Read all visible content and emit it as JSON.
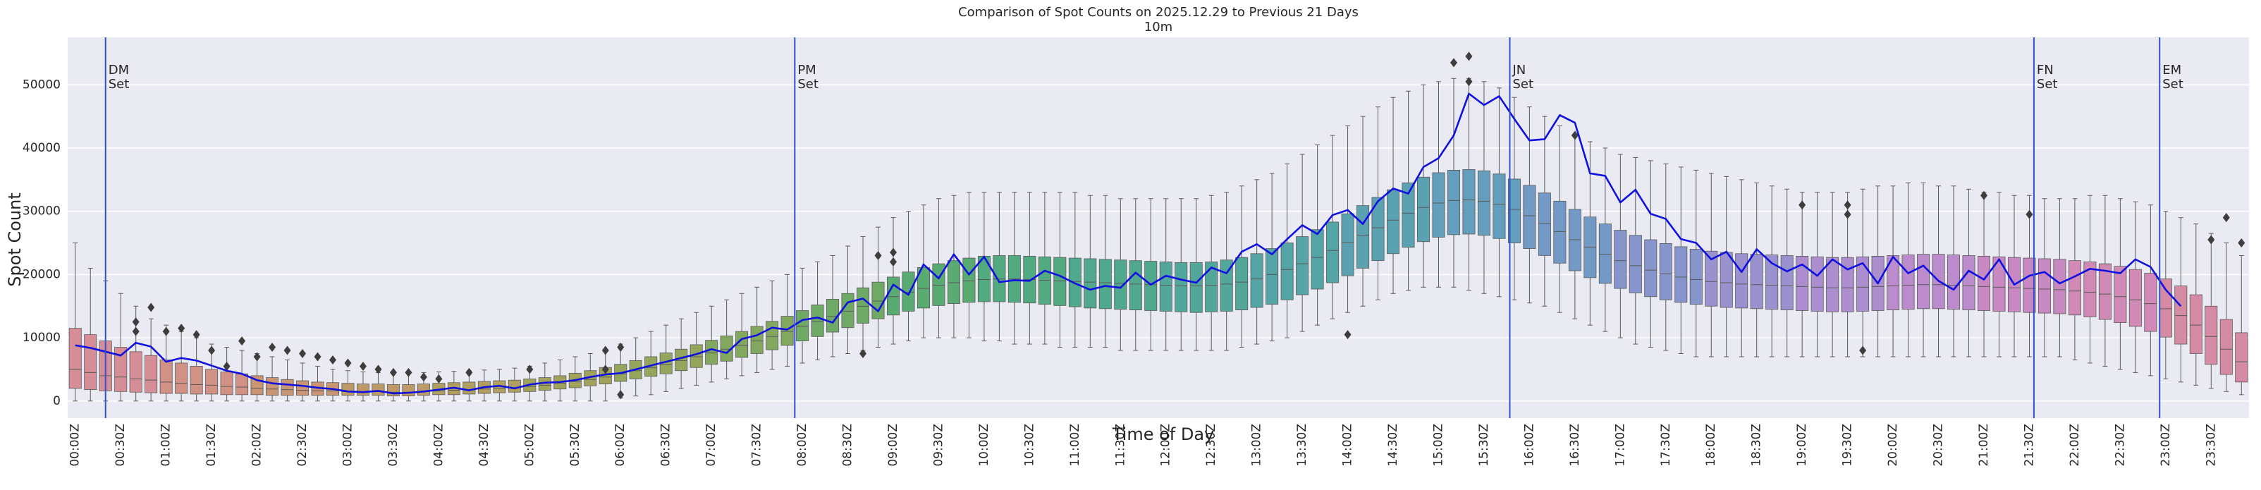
{
  "chart_data": {
    "type": "box",
    "title": "Comparison of Spot Counts on 2025.12.29 to Previous 21 Days",
    "subtitle": "10m",
    "x_label": "Time of Day",
    "y_label": "Spot Count",
    "ylim": [
      -2700,
      57500
    ],
    "yticks": [
      0,
      10000,
      20000,
      30000,
      40000,
      50000
    ],
    "grid": true,
    "categories": [
      "00:00Z",
      null,
      null,
      "00:30Z",
      null,
      null,
      "01:00Z",
      null,
      null,
      "01:30Z",
      null,
      null,
      "02:00Z",
      null,
      null,
      "02:30Z",
      null,
      null,
      "03:00Z",
      null,
      null,
      "03:30Z",
      null,
      null,
      "04:00Z",
      null,
      null,
      "04:30Z",
      null,
      null,
      "05:00Z",
      null,
      null,
      "05:30Z",
      null,
      null,
      "06:00Z",
      null,
      null,
      "06:30Z",
      null,
      null,
      "07:00Z",
      null,
      null,
      "07:30Z",
      null,
      null,
      "08:00Z",
      null,
      null,
      "08:30Z",
      null,
      null,
      "09:00Z",
      null,
      null,
      "09:30Z",
      null,
      null,
      "10:00Z",
      null,
      null,
      "10:30Z",
      null,
      null,
      "11:00Z",
      null,
      null,
      "11:30Z",
      null,
      null,
      "12:00Z",
      null,
      null,
      "12:30Z",
      null,
      null,
      "13:00Z",
      null,
      null,
      "13:30Z",
      null,
      null,
      "14:00Z",
      null,
      null,
      "14:30Z",
      null,
      null,
      "15:00Z",
      null,
      null,
      "15:30Z",
      null,
      null,
      "16:00Z",
      null,
      null,
      "16:30Z",
      null,
      null,
      "17:00Z",
      null,
      null,
      "17:30Z",
      null,
      null,
      "18:00Z",
      null,
      null,
      "18:30Z",
      null,
      null,
      "19:00Z",
      null,
      null,
      "19:30Z",
      null,
      null,
      "20:00Z",
      null,
      null,
      "20:30Z",
      null,
      null,
      "21:00Z",
      null,
      null,
      "21:30Z",
      null,
      null,
      "22:00Z",
      null,
      null,
      "22:30Z",
      null,
      null,
      "23:00Z",
      null,
      null,
      "23:30Z",
      null,
      null
    ],
    "boxes": {
      "whislo": [
        0,
        0,
        0,
        0,
        0,
        0,
        0,
        0,
        0,
        0,
        0,
        0,
        0,
        0,
        0,
        0,
        0,
        0,
        0,
        0,
        0,
        0,
        0,
        0,
        0,
        0,
        0,
        0,
        0,
        0,
        0,
        0,
        0,
        0,
        0,
        0,
        500,
        800,
        1000,
        1500,
        2000,
        2500,
        3000,
        3500,
        4000,
        4500,
        5000,
        5500,
        6000,
        6500,
        7000,
        7500,
        8000,
        8500,
        9000,
        9500,
        10000,
        10000,
        10000,
        10000,
        9500,
        9500,
        9000,
        9000,
        9000,
        8500,
        8500,
        8500,
        8500,
        8000,
        8000,
        8000,
        8000,
        8000,
        8000,
        8000,
        8000,
        8500,
        9000,
        9500,
        10000,
        11000,
        12000,
        13000,
        14000,
        15000,
        16000,
        17000,
        17500,
        18000,
        18000,
        18000,
        17500,
        17000,
        16500,
        16000,
        15500,
        15000,
        14000,
        13000,
        12000,
        11000,
        10000,
        9000,
        8500,
        8000,
        7500,
        7000,
        7000,
        7000,
        7000,
        7000,
        7000,
        7000,
        7000,
        7000,
        7000,
        7000,
        7000,
        7000,
        7000,
        7000,
        7000,
        7000,
        7000,
        7000,
        7000,
        7000,
        7000,
        7000,
        7000,
        7000,
        6500,
        6000,
        5500,
        5000,
        4500,
        4000,
        3500,
        3000,
        2500,
        2000,
        1500,
        1000
      ],
      "q1": [
        2000,
        1800,
        1600,
        1500,
        1400,
        1300,
        1200,
        1200,
        1100,
        1100,
        1000,
        1000,
        1000,
        900,
        900,
        900,
        900,
        900,
        900,
        900,
        900,
        800,
        800,
        900,
        1000,
        1000,
        1100,
        1200,
        1300,
        1400,
        1500,
        1700,
        1900,
        2100,
        2400,
        2700,
        3100,
        3500,
        3900,
        4300,
        4800,
        5300,
        5800,
        6300,
        6900,
        7500,
        8100,
        8800,
        9500,
        10200,
        10900,
        11600,
        12300,
        13000,
        13600,
        14200,
        14700,
        15100,
        15400,
        15600,
        15700,
        15700,
        15600,
        15500,
        15300,
        15100,
        14900,
        14700,
        14600,
        14500,
        14400,
        14300,
        14200,
        14100,
        14000,
        14100,
        14200,
        14400,
        14800,
        15300,
        16000,
        16800,
        17700,
        18700,
        19800,
        21000,
        22200,
        23300,
        24300,
        25200,
        25900,
        26300,
        26400,
        26200,
        25700,
        25000,
        24100,
        23000,
        21800,
        20600,
        19500,
        18600,
        17800,
        17100,
        16500,
        16000,
        15600,
        15300,
        15000,
        14800,
        14700,
        14600,
        14500,
        14400,
        14300,
        14200,
        14100,
        14100,
        14200,
        14300,
        14400,
        14500,
        14600,
        14600,
        14500,
        14400,
        14300,
        14200,
        14100,
        14000,
        13900,
        13800,
        13600,
        13300,
        12900,
        12400,
        11800,
        11000,
        10100,
        9000,
        7500,
        5800,
        4200,
        3000
      ],
      "median": [
        5000,
        4500,
        4000,
        3800,
        3500,
        3300,
        3000,
        2800,
        2600,
        2500,
        2300,
        2200,
        2000,
        1900,
        1800,
        1700,
        1600,
        1600,
        1500,
        1500,
        1500,
        1400,
        1400,
        1500,
        1600,
        1700,
        1800,
        1900,
        2000,
        2100,
        2300,
        2500,
        2800,
        3100,
        3400,
        3800,
        4300,
        4800,
        5300,
        5800,
        6400,
        7000,
        7600,
        8200,
        8800,
        9500,
        10200,
        11000,
        11800,
        12600,
        13400,
        14200,
        15000,
        15800,
        16500,
        17200,
        17800,
        18300,
        18700,
        19000,
        19200,
        19300,
        19300,
        19200,
        19100,
        19000,
        18900,
        18800,
        18700,
        18600,
        18500,
        18400,
        18300,
        18200,
        18200,
        18300,
        18500,
        18800,
        19300,
        20000,
        20800,
        21700,
        22700,
        23800,
        25000,
        26200,
        27400,
        28600,
        29700,
        30600,
        31300,
        31700,
        31800,
        31600,
        31100,
        30300,
        29300,
        28100,
        26800,
        25500,
        24300,
        23200,
        22200,
        21400,
        20700,
        20100,
        19600,
        19200,
        18900,
        18700,
        18500,
        18400,
        18300,
        18200,
        18100,
        18000,
        17900,
        17900,
        18000,
        18100,
        18200,
        18300,
        18400,
        18400,
        18300,
        18200,
        18100,
        18000,
        17900,
        17800,
        17700,
        17600,
        17400,
        17200,
        16900,
        16500,
        16000,
        15400,
        14600,
        13500,
        12000,
        10200,
        8200,
        6200
      ],
      "q3": [
        11500,
        10500,
        9500,
        8500,
        7800,
        7200,
        6500,
        6000,
        5500,
        5000,
        4600,
        4300,
        4000,
        3700,
        3400,
        3200,
        3000,
        2900,
        2800,
        2700,
        2700,
        2600,
        2600,
        2700,
        2800,
        2900,
        3000,
        3100,
        3200,
        3300,
        3500,
        3700,
        4000,
        4400,
        4800,
        5300,
        5800,
        6400,
        7000,
        7600,
        8200,
        8900,
        9600,
        10300,
        11000,
        11800,
        12600,
        13400,
        14300,
        15200,
        16100,
        17000,
        17900,
        18800,
        19600,
        20400,
        21100,
        21700,
        22200,
        22600,
        22900,
        23000,
        23000,
        22900,
        22800,
        22700,
        22600,
        22500,
        22400,
        22300,
        22200,
        22100,
        22000,
        21900,
        21900,
        22000,
        22300,
        22700,
        23300,
        24100,
        25000,
        26000,
        27100,
        28300,
        29600,
        30900,
        32200,
        33400,
        34500,
        35400,
        36100,
        36500,
        36600,
        36400,
        35900,
        35100,
        34100,
        32900,
        31600,
        30300,
        29100,
        28000,
        27000,
        26200,
        25500,
        24900,
        24400,
        24000,
        23700,
        23500,
        23300,
        23200,
        23100,
        23000,
        22900,
        22800,
        22700,
        22700,
        22800,
        22900,
        23000,
        23100,
        23200,
        23200,
        23100,
        23000,
        22900,
        22800,
        22700,
        22600,
        22500,
        22400,
        22200,
        22000,
        21700,
        21300,
        20800,
        20200,
        19300,
        18200,
        16800,
        15000,
        12900,
        10800
      ],
      "whishi": [
        25000,
        21000,
        19000,
        17000,
        15000,
        13000,
        12000,
        11000,
        10000,
        9000,
        8500,
        8000,
        7500,
        7000,
        6500,
        6000,
        5500,
        5000,
        4800,
        4600,
        4500,
        4400,
        4400,
        4500,
        4600,
        4700,
        4800,
        4900,
        5000,
        5200,
        5500,
        6000,
        6500,
        7000,
        7500,
        8000,
        9000,
        10000,
        11000,
        12000,
        13000,
        14000,
        15000,
        16000,
        17000,
        18000,
        19000,
        20000,
        21000,
        22000,
        23000,
        24500,
        26000,
        27500,
        29000,
        30000,
        31000,
        32000,
        32500,
        33000,
        33000,
        33000,
        33000,
        33000,
        33000,
        33000,
        33000,
        32500,
        32500,
        32000,
        32000,
        32000,
        32000,
        32000,
        32000,
        32500,
        33000,
        34000,
        35000,
        36000,
        37500,
        39000,
        40500,
        42000,
        43500,
        45000,
        46500,
        48000,
        49000,
        50000,
        50500,
        51000,
        51000,
        50500,
        49500,
        48000,
        46500,
        45000,
        43500,
        42000,
        41000,
        40000,
        39000,
        38500,
        38000,
        37500,
        37000,
        36500,
        36000,
        35500,
        35000,
        34500,
        34000,
        33500,
        33000,
        33000,
        33000,
        33000,
        33500,
        34000,
        34000,
        34500,
        34500,
        34000,
        34000,
        33500,
        33000,
        33000,
        32500,
        32500,
        32000,
        32000,
        32000,
        32500,
        32500,
        32000,
        31500,
        31000,
        30000,
        29000,
        28000,
        26500,
        25000,
        23000
      ],
      "colors": [
        "#d68e96",
        "#d68e96",
        "#d68e96",
        "#d68e96",
        "#d68e96",
        "#d68e96",
        "#d19185",
        "#d19185",
        "#d19185",
        "#d19185",
        "#d19185",
        "#d19185",
        "#c99573",
        "#c99573",
        "#c99573",
        "#c99573",
        "#c99573",
        "#c99573",
        "#bd9a66",
        "#bd9a66",
        "#bd9a66",
        "#bd9a66",
        "#bd9a66",
        "#bd9a66",
        "#b09f5e",
        "#b09f5e",
        "#b09f5e",
        "#b09f5e",
        "#b09f5e",
        "#b09f5e",
        "#a2a35b",
        "#a2a35b",
        "#a2a35b",
        "#a2a35b",
        "#a2a35b",
        "#a2a35b",
        "#94a65c",
        "#94a65c",
        "#94a65c",
        "#94a65c",
        "#94a65c",
        "#94a65c",
        "#82a860",
        "#82a860",
        "#82a860",
        "#82a860",
        "#82a860",
        "#82a860",
        "#6eaa66",
        "#6eaa66",
        "#6eaa66",
        "#6eaa66",
        "#6eaa66",
        "#6eaa66",
        "#5aab72",
        "#5aab72",
        "#5aab72",
        "#5aab72",
        "#5aab72",
        "#5aab72",
        "#52aa80",
        "#52aa80",
        "#52aa80",
        "#52aa80",
        "#52aa80",
        "#52aa80",
        "#50a98d",
        "#50a98d",
        "#50a98d",
        "#50a98d",
        "#50a98d",
        "#50a98d",
        "#52a79a",
        "#52a79a",
        "#52a79a",
        "#52a79a",
        "#52a79a",
        "#52a79a",
        "#55a5a6",
        "#55a5a6",
        "#55a5a6",
        "#55a5a6",
        "#55a5a6",
        "#55a5a6",
        "#5aa2b2",
        "#5aa2b2",
        "#5aa2b2",
        "#5aa2b2",
        "#5aa2b2",
        "#5aa2b2",
        "#649ebd",
        "#649ebd",
        "#649ebd",
        "#649ebd",
        "#649ebd",
        "#649ebd",
        "#739ac6",
        "#739ac6",
        "#739ac6",
        "#739ac6",
        "#739ac6",
        "#739ac6",
        "#8696cc",
        "#8696cc",
        "#8696cc",
        "#8696cc",
        "#8696cc",
        "#8696cc",
        "#9a92cf",
        "#9a92cf",
        "#9a92cf",
        "#9a92cf",
        "#9a92cf",
        "#9a92cf",
        "#ac8ecf",
        "#ac8ecf",
        "#ac8ecf",
        "#ac8ecf",
        "#ac8ecf",
        "#ac8ecf",
        "#bc8bcb",
        "#bc8bcb",
        "#bc8bcb",
        "#bc8bcb",
        "#bc8bcb",
        "#bc8bcb",
        "#c889c3",
        "#c889c3",
        "#c889c3",
        "#c889c3",
        "#c889c3",
        "#c889c3",
        "#d189b5",
        "#d189b5",
        "#d189b5",
        "#d189b5",
        "#d189b5",
        "#d189b5",
        "#d68ba5",
        "#d68ba5",
        "#d68ba5",
        "#d68ba5",
        "#d68ba5",
        "#d68ba5"
      ]
    },
    "outliers": {
      "index": [
        4,
        4,
        5,
        6,
        7,
        8,
        9,
        10,
        11,
        12,
        13,
        14,
        15,
        16,
        17,
        18,
        19,
        20,
        21,
        22,
        23,
        24,
        26,
        30,
        35,
        35,
        36,
        36,
        52,
        53,
        54,
        54,
        84,
        91,
        92,
        92,
        99,
        114,
        117,
        117,
        118,
        126,
        129,
        141,
        142,
        143
      ],
      "values": [
        12500,
        11000,
        14800,
        11000,
        11500,
        10500,
        8000,
        5500,
        9500,
        7000,
        8500,
        8000,
        7500,
        7000,
        6500,
        6000,
        5500,
        5000,
        4500,
        4500,
        3800,
        3500,
        4500,
        5000,
        5000,
        8000,
        8500,
        1000,
        7500,
        23000,
        23500,
        22000,
        10500,
        53500,
        50500,
        54500,
        42000,
        31000,
        31000,
        29500,
        8000,
        32500,
        29500,
        25500,
        29000,
        25000
      ]
    },
    "line": {
      "color": "#1010e0",
      "values": [
        8800,
        8400,
        7800,
        7200,
        9200,
        8600,
        6200,
        6800,
        6400,
        5600,
        4800,
        4300,
        3300,
        2800,
        2600,
        2400,
        2100,
        1900,
        1500,
        1400,
        1600,
        1200,
        1300,
        1500,
        1800,
        2100,
        1700,
        2200,
        2400,
        2000,
        2600,
        2900,
        3000,
        3300,
        3800,
        4200,
        4400,
        5000,
        5600,
        6200,
        6800,
        7400,
        8200,
        7600,
        9800,
        10400,
        11600,
        11300,
        12800,
        13200,
        12400,
        15600,
        16200,
        14200,
        18400,
        16800,
        21600,
        19400,
        23200,
        20000,
        22800,
        18800,
        19100,
        19000,
        20600,
        19800,
        18600,
        17600,
        18200,
        17900,
        20300,
        18400,
        19800,
        19200,
        18700,
        21100,
        20200,
        23600,
        24800,
        23200,
        25600,
        27800,
        26400,
        29400,
        30200,
        28000,
        31600,
        33600,
        32800,
        37000,
        38400,
        42000,
        48600,
        46800,
        48200,
        44600,
        41200,
        41400,
        45200,
        44000,
        36000,
        35600,
        31400,
        33400,
        29600,
        28800,
        25600,
        25000,
        22400,
        23600,
        20400,
        24000,
        21800,
        20500,
        21600,
        19800,
        22400,
        20800,
        21800,
        18600,
        22800,
        20200,
        21400,
        19000,
        17600,
        20600,
        19200,
        22400,
        18400,
        19800,
        20400,
        18600,
        19700,
        20900,
        20600,
        20200,
        22400,
        21200,
        17600,
        15000,
        null,
        null,
        null,
        null
      ]
    },
    "event_lines": {
      "color": "#3050d0",
      "items": [
        {
          "position": 2,
          "text": [
            "DM",
            "Set"
          ]
        },
        {
          "position": 47.5,
          "text": [
            "PM",
            "Set"
          ]
        },
        {
          "position": 94.7,
          "text": [
            "JN",
            "Set"
          ]
        },
        {
          "position": 129.3,
          "text": [
            "FN",
            "Set"
          ]
        },
        {
          "position": 137.6,
          "text": [
            "EM",
            "Set"
          ]
        }
      ]
    }
  }
}
